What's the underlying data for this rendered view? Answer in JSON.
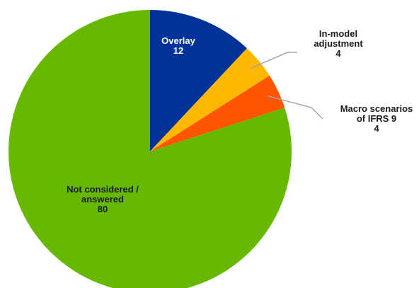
{
  "chart_data": {
    "type": "pie",
    "title": "",
    "slices": [
      {
        "label_lines": [
          "Overlay"
        ],
        "value": 12,
        "color": "#003399"
      },
      {
        "label_lines": [
          "In-model",
          "adjustment"
        ],
        "value": 4,
        "color": "#ffb800"
      },
      {
        "label_lines": [
          "Macro scenarios",
          "of IFRS 9"
        ],
        "value": 4,
        "color": "#ff5500"
      },
      {
        "label_lines": [
          "Not considered /",
          "answered"
        ],
        "value": 80,
        "color": "#66b800"
      }
    ],
    "start_angle": "12 o'clock",
    "direction": "clockwise",
    "legend": "none"
  }
}
